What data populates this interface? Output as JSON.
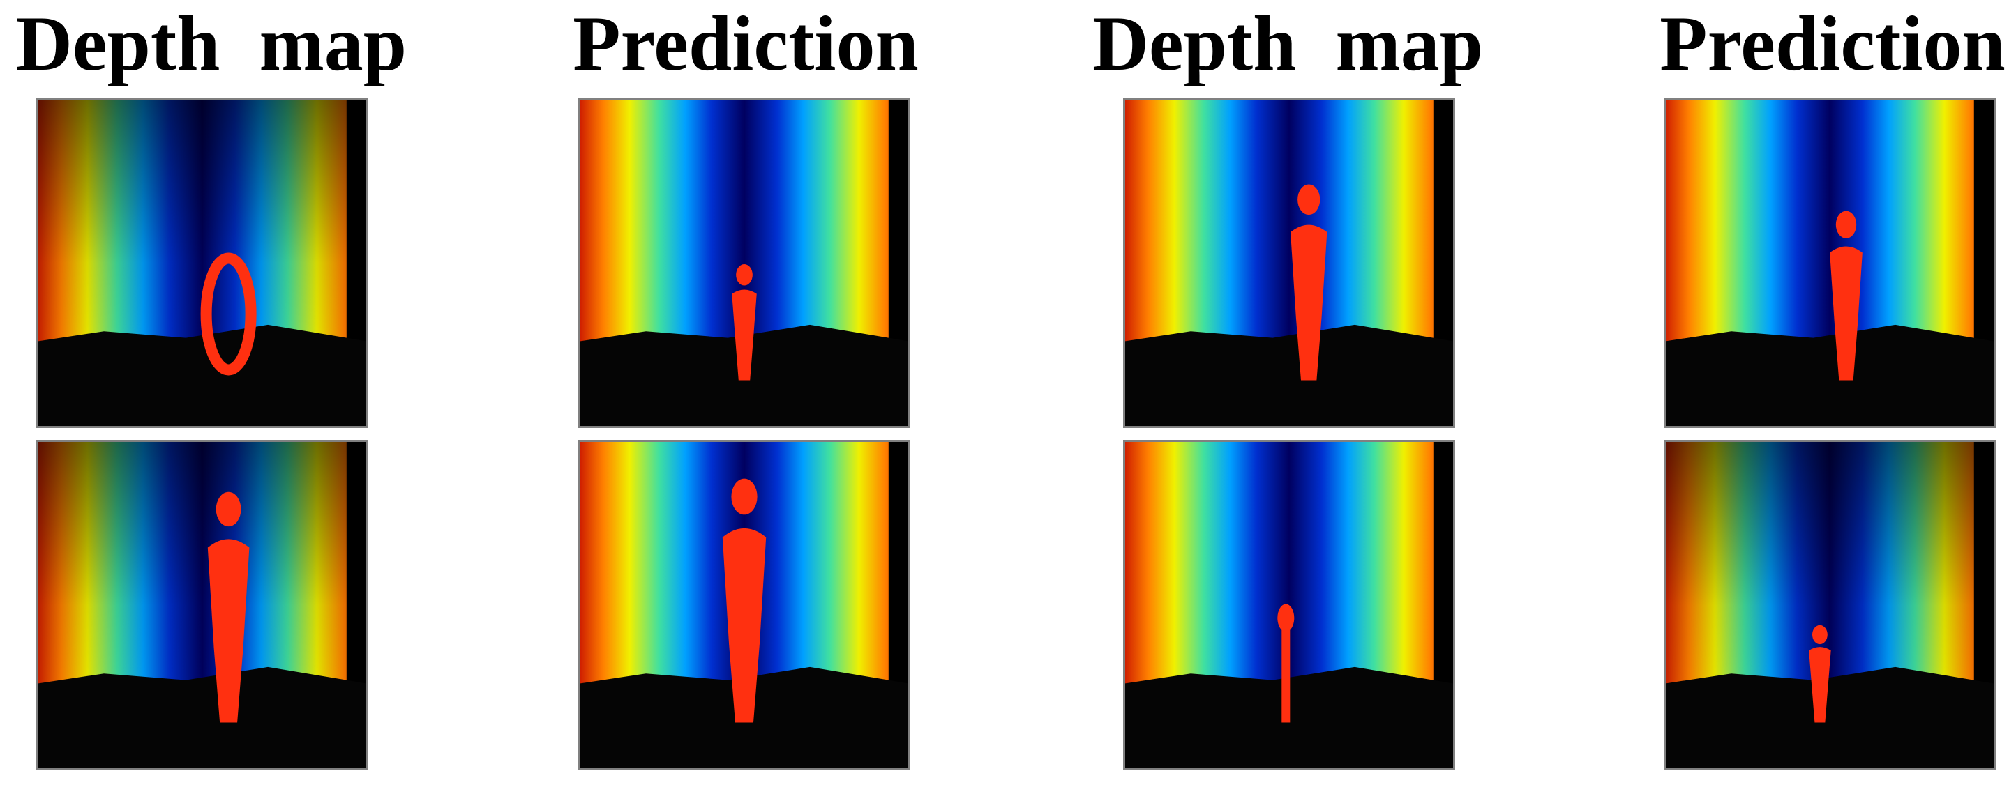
{
  "headers": [
    "Depth  map",
    "Prediction",
    "Depth  map",
    "Prediction"
  ]
}
